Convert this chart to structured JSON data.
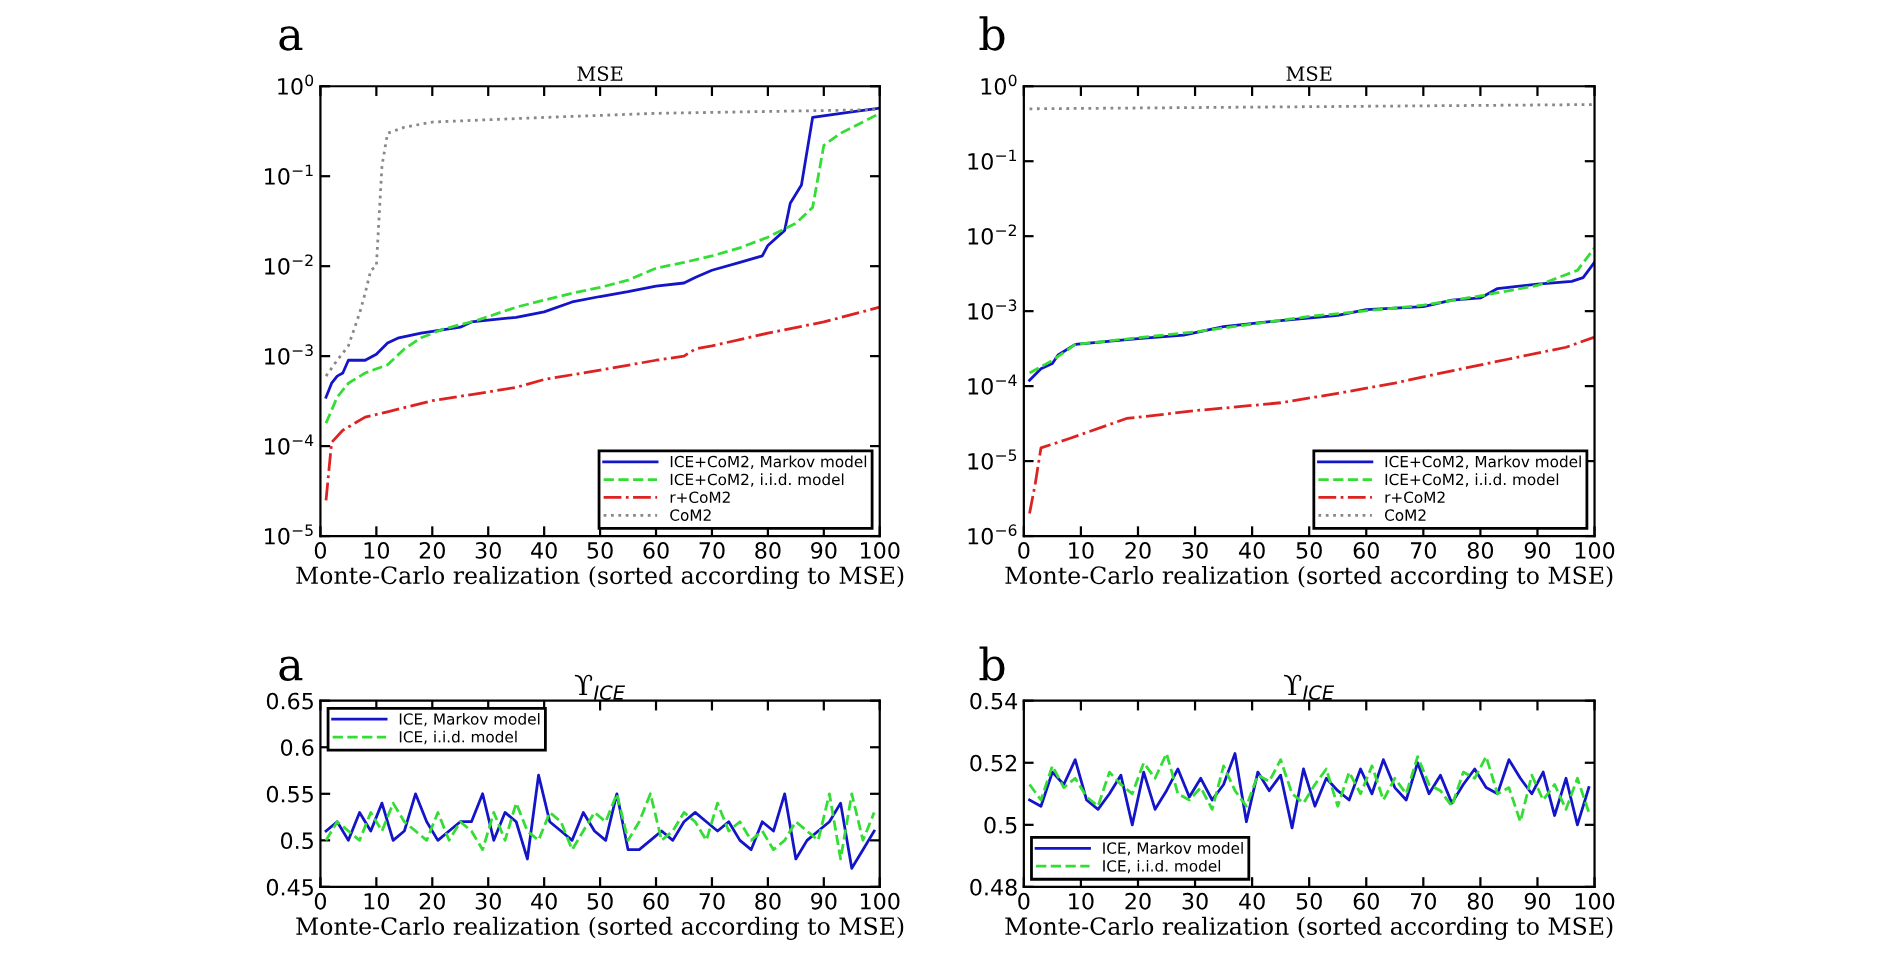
{
  "chart_data": [
    {
      "type": "line",
      "title": "MSE",
      "xlabel": "Monte-Carlo realization (sorted according to MSE)",
      "annotations": [
        "a"
      ],
      "log": "y",
      "xlim": [
        0,
        100
      ],
      "xticks": [
        0,
        10,
        20,
        30,
        40,
        50,
        60,
        70,
        80,
        90,
        100
      ],
      "ylim": [
        1e-05,
        1
      ],
      "yticks": [
        {
          "value": 1e-05,
          "label": "10$^{−5}$"
        },
        {
          "value": 0.0001,
          "label": "10$^{−4}$"
        },
        {
          "value": 0.001,
          "label": "10$^{−3}$"
        },
        {
          "value": 0.01,
          "label": "10$^{−2}$"
        },
        {
          "value": 0.1,
          "label": "10$^{−1}$"
        },
        {
          "value": 1,
          "label": "10$^{0}$"
        }
      ],
      "grid": false,
      "legend": "bottom right",
      "series": [
        {
          "name": "ICE+CoM2, Markov model",
          "color": "#1414c8",
          "line_style": "solid",
          "x": [
            1,
            2,
            3,
            4,
            5,
            8,
            10,
            12,
            14,
            18,
            25,
            27,
            35,
            40,
            45,
            50,
            55,
            60,
            65,
            67,
            70,
            75,
            79,
            80,
            83,
            84,
            86,
            88,
            95,
            100
          ],
          "values": [
            0.00035,
            0.0005,
            0.0006,
            0.00065,
            0.0009,
            0.0009,
            0.00105,
            0.0014,
            0.0016,
            0.0018,
            0.0021,
            0.0024,
            0.0027,
            0.0031,
            0.004,
            0.0046,
            0.0052,
            0.006,
            0.0065,
            0.0075,
            0.009,
            0.011,
            0.013,
            0.017,
            0.025,
            0.05,
            0.08,
            0.45,
            0.52,
            0.57
          ]
        },
        {
          "name": "ICE+CoM2, i.i.d. model",
          "color": "#33dd33",
          "line_style": "dashed",
          "x": [
            1,
            3,
            5,
            8,
            12,
            15,
            18,
            22,
            28,
            35,
            40,
            45,
            50,
            55,
            60,
            65,
            70,
            75,
            80,
            85,
            88,
            90,
            93,
            97,
            100
          ],
          "values": [
            0.00018,
            0.00035,
            0.0005,
            0.00065,
            0.0008,
            0.0012,
            0.0016,
            0.002,
            0.0025,
            0.0035,
            0.0042,
            0.005,
            0.0058,
            0.007,
            0.0095,
            0.011,
            0.013,
            0.016,
            0.021,
            0.03,
            0.045,
            0.22,
            0.3,
            0.4,
            0.5
          ]
        },
        {
          "name": "r+CoM2",
          "color": "#dd2222",
          "line_style": "dashdot",
          "x": [
            1,
            2,
            4,
            8,
            12,
            20,
            30,
            35,
            40,
            50,
            60,
            65,
            67,
            70,
            80,
            90,
            100
          ],
          "values": [
            2.5e-05,
            0.00011,
            0.00015,
            0.00021,
            0.00024,
            0.00032,
            0.0004,
            0.00045,
            0.00055,
            0.0007,
            0.0009,
            0.001,
            0.0012,
            0.0013,
            0.0018,
            0.0024,
            0.0035
          ]
        },
        {
          "name": "CoM2",
          "color": "#888888",
          "line_style": "dotted",
          "x": [
            1,
            3,
            5,
            7,
            8,
            9,
            10,
            11,
            12,
            15,
            20,
            40,
            60,
            100
          ],
          "values": [
            0.0006,
            0.0009,
            0.0013,
            0.003,
            0.005,
            0.009,
            0.01,
            0.13,
            0.3,
            0.35,
            0.4,
            0.45,
            0.5,
            0.55
          ]
        }
      ]
    },
    {
      "type": "line",
      "title": "MSE",
      "xlabel": "Monte-Carlo realization (sorted according to MSE)",
      "annotations": [
        "b"
      ],
      "log": "y",
      "xlim": [
        0,
        100
      ],
      "xticks": [
        0,
        10,
        20,
        30,
        40,
        50,
        60,
        70,
        80,
        90,
        100
      ],
      "ylim": [
        1e-06,
        1
      ],
      "yticks": [
        {
          "value": 1e-06,
          "label": "10$^{−6}$"
        },
        {
          "value": 1e-05,
          "label": "10$^{−5}$"
        },
        {
          "value": 0.0001,
          "label": "10$^{−4}$"
        },
        {
          "value": 0.001,
          "label": "10$^{−3}$"
        },
        {
          "value": 0.01,
          "label": "10$^{−2}$"
        },
        {
          "value": 0.1,
          "label": "10$^{−1}$"
        },
        {
          "value": 1,
          "label": "10$^{0}$"
        }
      ],
      "grid": false,
      "legend": "bottom right",
      "series": [
        {
          "name": "ICE+CoM2, Markov model",
          "color": "#1414c8",
          "line_style": "solid",
          "x": [
            1,
            3,
            5,
            6,
            9,
            20,
            28,
            35,
            45,
            55,
            60,
            70,
            75,
            80,
            83,
            90,
            96,
            98,
            100
          ],
          "values": [
            0.00012,
            0.00017,
            0.0002,
            0.00026,
            0.00036,
            0.00043,
            0.00048,
            0.00062,
            0.00075,
            0.00088,
            0.00105,
            0.00115,
            0.0014,
            0.0015,
            0.002,
            0.0023,
            0.0025,
            0.0028,
            0.0045
          ]
        },
        {
          "name": "ICE+CoM2, i.i.d. model",
          "color": "#33dd33",
          "line_style": "dashed",
          "x": [
            1,
            5,
            9,
            30,
            50,
            70,
            80,
            90,
            97,
            100
          ],
          "values": [
            0.00015,
            0.00022,
            0.00036,
            0.00053,
            0.00085,
            0.0012,
            0.0016,
            0.0022,
            0.0035,
            0.007
          ]
        },
        {
          "name": "r+CoM2",
          "color": "#dd2222",
          "line_style": "dashdot",
          "x": [
            1,
            2,
            3,
            8,
            18,
            30,
            45,
            55,
            65,
            75,
            85,
            95,
            100
          ],
          "values": [
            2e-06,
            5e-06,
            1.5e-05,
            2e-05,
            3.7e-05,
            4.7e-05,
            6e-05,
            8e-05,
            0.00011,
            0.00016,
            0.00023,
            0.00033,
            0.00045
          ]
        },
        {
          "name": "CoM2",
          "color": "#888888",
          "line_style": "dotted",
          "x": [
            1,
            100
          ],
          "values": [
            0.5,
            0.57
          ]
        }
      ]
    },
    {
      "type": "line",
      "title": "ϒ$_{ICE}$",
      "xlabel": "Monte-Carlo realization (sorted according to MSE)",
      "annotations": [
        "a"
      ],
      "xlim": [
        0,
        100
      ],
      "xticks": [
        0,
        10,
        20,
        30,
        40,
        50,
        60,
        70,
        80,
        90,
        100
      ],
      "ylim": [
        0.45,
        0.65
      ],
      "yticks": [
        0.45,
        0.5,
        0.55,
        0.6,
        0.65
      ],
      "grid": false,
      "legend": "top left",
      "x": [
        1,
        3,
        5,
        7,
        9,
        11,
        13,
        15,
        17,
        19,
        21,
        23,
        25,
        27,
        29,
        31,
        33,
        35,
        37,
        39,
        41,
        43,
        45,
        47,
        49,
        51,
        53,
        55,
        57,
        59,
        61,
        63,
        65,
        67,
        69,
        71,
        73,
        75,
        77,
        79,
        81,
        83,
        85,
        87,
        89,
        91,
        93,
        95,
        97,
        99
      ],
      "series": [
        {
          "name": "ICE, Markov model",
          "color": "#1414c8",
          "line_style": "solid",
          "values": [
            0.51,
            0.52,
            0.5,
            0.53,
            0.51,
            0.54,
            0.5,
            0.51,
            0.55,
            0.52,
            0.5,
            0.51,
            0.52,
            0.52,
            0.55,
            0.5,
            0.53,
            0.52,
            0.48,
            0.57,
            0.52,
            0.51,
            0.5,
            0.53,
            0.51,
            0.5,
            0.55,
            0.49,
            0.49,
            0.5,
            0.51,
            0.5,
            0.52,
            0.53,
            0.52,
            0.51,
            0.52,
            0.5,
            0.49,
            0.52,
            0.51,
            0.55,
            0.48,
            0.5,
            0.51,
            0.52,
            0.54,
            0.47,
            0.49,
            0.51
          ]
        },
        {
          "name": "ICE, i.i.d. model",
          "color": "#33dd33",
          "line_style": "dashed",
          "values": [
            0.5,
            0.52,
            0.51,
            0.5,
            0.53,
            0.51,
            0.54,
            0.52,
            0.51,
            0.5,
            0.53,
            0.5,
            0.52,
            0.51,
            0.49,
            0.53,
            0.5,
            0.54,
            0.51,
            0.5,
            0.53,
            0.52,
            0.49,
            0.51,
            0.53,
            0.52,
            0.55,
            0.5,
            0.52,
            0.55,
            0.5,
            0.51,
            0.53,
            0.52,
            0.5,
            0.54,
            0.51,
            0.52,
            0.5,
            0.51,
            0.49,
            0.5,
            0.52,
            0.51,
            0.5,
            0.55,
            0.48,
            0.55,
            0.5,
            0.53
          ]
        }
      ]
    },
    {
      "type": "line",
      "title": "ϒ$_{ICE}$",
      "xlabel": "Monte-Carlo realization (sorted according to MSE)",
      "annotations": [
        "b"
      ],
      "xlim": [
        0,
        100
      ],
      "xticks": [
        0,
        10,
        20,
        30,
        40,
        50,
        60,
        70,
        80,
        90,
        100
      ],
      "ylim": [
        0.48,
        0.54
      ],
      "yticks": [
        0.48,
        0.5,
        0.52,
        0.54
      ],
      "grid": false,
      "legend": "bottom left",
      "x": [
        1,
        3,
        5,
        7,
        9,
        11,
        13,
        15,
        17,
        19,
        21,
        23,
        25,
        27,
        29,
        31,
        33,
        35,
        37,
        39,
        41,
        43,
        45,
        47,
        49,
        51,
        53,
        55,
        57,
        59,
        61,
        63,
        65,
        67,
        69,
        71,
        73,
        75,
        77,
        79,
        81,
        83,
        85,
        87,
        89,
        91,
        93,
        95,
        97,
        99
      ],
      "series": [
        {
          "name": "ICE, Markov model",
          "color": "#1414c8",
          "line_style": "solid",
          "values": [
            0.508,
            0.506,
            0.517,
            0.513,
            0.521,
            0.508,
            0.505,
            0.51,
            0.516,
            0.5,
            0.517,
            0.505,
            0.511,
            0.518,
            0.509,
            0.515,
            0.508,
            0.513,
            0.523,
            0.501,
            0.517,
            0.511,
            0.516,
            0.499,
            0.518,
            0.506,
            0.515,
            0.511,
            0.508,
            0.518,
            0.51,
            0.521,
            0.512,
            0.508,
            0.52,
            0.51,
            0.516,
            0.507,
            0.513,
            0.518,
            0.512,
            0.51,
            0.521,
            0.515,
            0.51,
            0.517,
            0.503,
            0.515,
            0.5,
            0.512
          ]
        },
        {
          "name": "ICE, i.i.d. model",
          "color": "#33dd33",
          "line_style": "dashed",
          "values": [
            0.513,
            0.508,
            0.519,
            0.512,
            0.515,
            0.509,
            0.506,
            0.517,
            0.513,
            0.51,
            0.52,
            0.515,
            0.523,
            0.51,
            0.508,
            0.512,
            0.505,
            0.519,
            0.511,
            0.506,
            0.516,
            0.514,
            0.521,
            0.51,
            0.507,
            0.513,
            0.518,
            0.506,
            0.517,
            0.51,
            0.519,
            0.508,
            0.515,
            0.51,
            0.522,
            0.513,
            0.511,
            0.506,
            0.517,
            0.515,
            0.522,
            0.51,
            0.512,
            0.501,
            0.516,
            0.508,
            0.513,
            0.505,
            0.515,
            0.504
          ]
        }
      ]
    }
  ]
}
